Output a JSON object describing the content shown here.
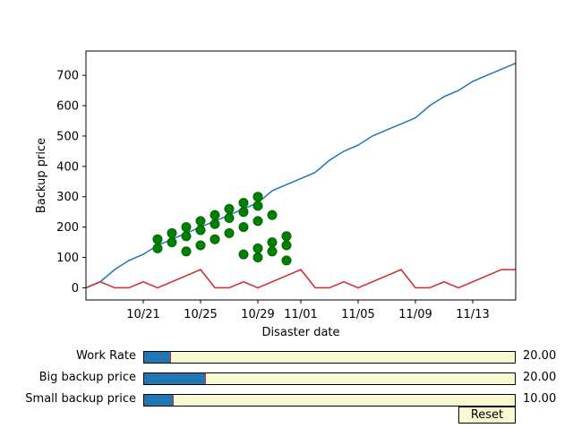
{
  "chart_data": {
    "type": "line",
    "xlabel": "Disaster date",
    "ylabel": "Backup price",
    "x_ticks": [
      "10/21",
      "10/25",
      "10/29",
      "11/01",
      "11/05",
      "11/09",
      "11/13"
    ],
    "x_tick_days": [
      4,
      8,
      12,
      15,
      19,
      23,
      27
    ],
    "y_ticks": [
      0,
      100,
      200,
      300,
      400,
      500,
      600,
      700
    ],
    "xlim": [
      "10/17",
      "11/16"
    ],
    "ylim": [
      -40,
      780
    ],
    "grid": false,
    "series": [
      {
        "color": "#1f77b4",
        "x": [
          "10/17",
          "10/18",
          "10/19",
          "10/20",
          "10/21",
          "10/22",
          "10/23",
          "10/24",
          "10/25",
          "10/26",
          "10/27",
          "10/28",
          "10/29",
          "10/30",
          "10/31",
          "11/01",
          "11/02",
          "11/03",
          "11/04",
          "11/05",
          "11/06",
          "11/07",
          "11/08",
          "11/09",
          "11/10",
          "11/11",
          "11/12",
          "11/13",
          "11/14",
          "11/15",
          "11/16"
        ],
        "y": [
          0,
          20,
          60,
          90,
          110,
          140,
          160,
          180,
          200,
          220,
          240,
          260,
          280,
          320,
          340,
          360,
          380,
          420,
          450,
          470,
          500,
          520,
          540,
          560,
          600,
          630,
          650,
          680,
          700,
          720,
          740
        ]
      },
      {
        "color": "#d62728",
        "x": [
          "10/17",
          "10/18",
          "10/19",
          "10/20",
          "10/21",
          "10/22",
          "10/23",
          "10/24",
          "10/25",
          "10/26",
          "10/27",
          "10/28",
          "10/29",
          "10/30",
          "10/31",
          "11/01",
          "11/02",
          "11/03",
          "11/04",
          "11/05",
          "11/06",
          "11/07",
          "11/08",
          "11/09",
          "11/10",
          "11/11",
          "11/12",
          "11/13",
          "11/14",
          "11/15",
          "11/16"
        ],
        "y": [
          0,
          20,
          0,
          0,
          20,
          0,
          20,
          40,
          60,
          0,
          0,
          20,
          0,
          20,
          40,
          60,
          0,
          0,
          20,
          0,
          20,
          40,
          60,
          0,
          0,
          20,
          0,
          20,
          40,
          60,
          60
        ]
      }
    ],
    "scatter": {
      "color": "#008000",
      "points": [
        [
          "10/22",
          130
        ],
        [
          "10/22",
          160
        ],
        [
          "10/23",
          150
        ],
        [
          "10/23",
          180
        ],
        [
          "10/24",
          120
        ],
        [
          "10/24",
          170
        ],
        [
          "10/24",
          200
        ],
        [
          "10/25",
          140
        ],
        [
          "10/25",
          190
        ],
        [
          "10/25",
          220
        ],
        [
          "10/26",
          160
        ],
        [
          "10/26",
          210
        ],
        [
          "10/26",
          240
        ],
        [
          "10/27",
          180
        ],
        [
          "10/27",
          230
        ],
        [
          "10/27",
          260
        ],
        [
          "10/28",
          110
        ],
        [
          "10/28",
          200
        ],
        [
          "10/28",
          250
        ],
        [
          "10/28",
          280
        ],
        [
          "10/29",
          100
        ],
        [
          "10/29",
          130
        ],
        [
          "10/29",
          220
        ],
        [
          "10/29",
          270
        ],
        [
          "10/29",
          300
        ],
        [
          "10/30",
          120
        ],
        [
          "10/30",
          150
        ],
        [
          "10/30",
          240
        ],
        [
          "10/31",
          90
        ],
        [
          "10/31",
          140
        ],
        [
          "10/31",
          170
        ]
      ]
    }
  },
  "sliders": [
    {
      "label": "Work Rate",
      "value": "20.00",
      "fraction": 0.07
    },
    {
      "label": "Big backup price",
      "value": "20.00",
      "fraction": 0.165
    },
    {
      "label": "Small backup price",
      "value": "10.00",
      "fraction": 0.078
    }
  ],
  "reset_label": "Reset"
}
